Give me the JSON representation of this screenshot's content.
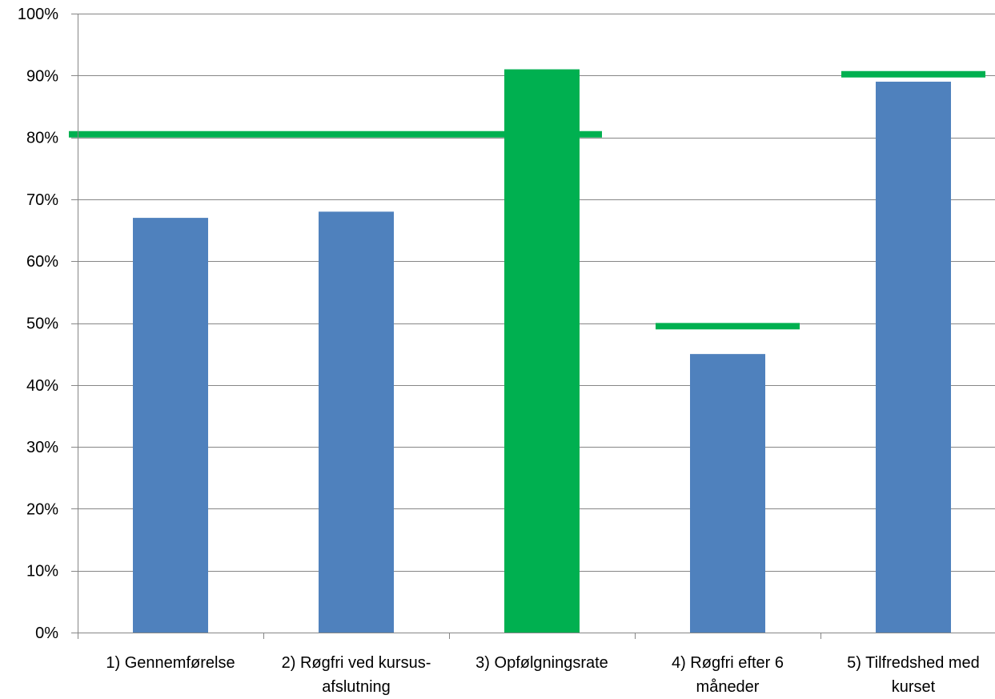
{
  "chart_data": {
    "type": "bar",
    "categories": [
      [
        "1) Gennemførelse"
      ],
      [
        "2) Røgfri ved kursus-",
        "afslutning"
      ],
      [
        "3) Opfølgningsrate"
      ],
      [
        "4) Røgfri efter 6",
        "måneder"
      ],
      [
        "5) Tilfredshed med",
        "kurset"
      ]
    ],
    "values": [
      67,
      68,
      91,
      45,
      89
    ],
    "bar_colors": [
      "#4F81BD",
      "#4F81BD",
      "#00B050",
      "#4F81BD",
      "#4F81BD"
    ],
    "targets": [
      {
        "value": 80.5,
        "from_category": 0,
        "to_category": 2
      },
      {
        "value": 49.5,
        "from_category": 3,
        "to_category": 3
      },
      {
        "value": 90.2,
        "from_category": 4,
        "to_category": 4
      }
    ],
    "target_color": "#00B050",
    "y_ticks": [
      "0%",
      "10%",
      "20%",
      "30%",
      "40%",
      "50%",
      "60%",
      "70%",
      "80%",
      "90%",
      "100%"
    ],
    "ylim": [
      0,
      100
    ],
    "grid": true,
    "title": "",
    "xlabel": "",
    "ylabel": ""
  }
}
